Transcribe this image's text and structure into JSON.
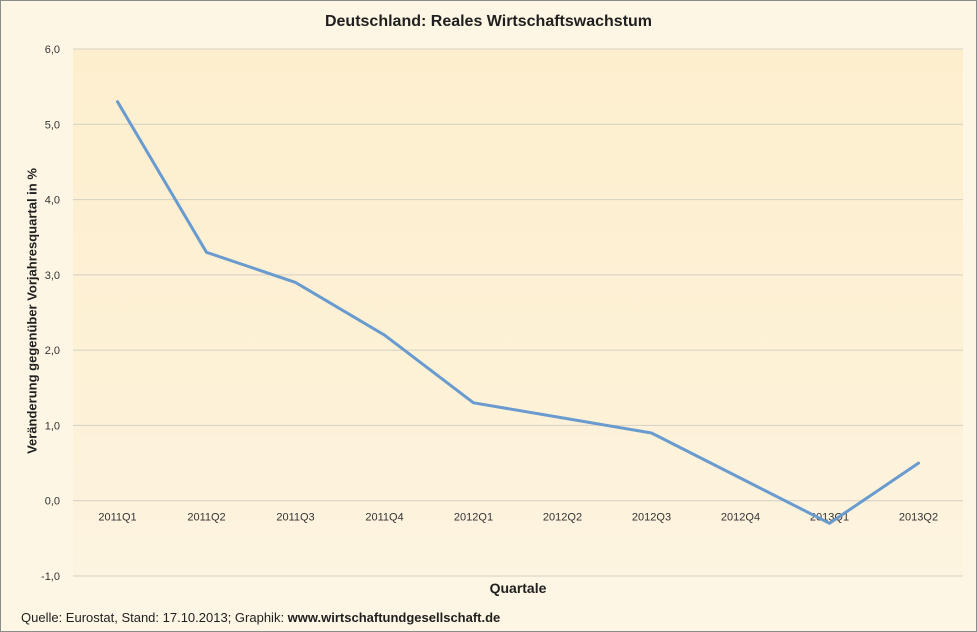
{
  "chart_data": {
    "type": "line",
    "title": "Deutschland: Reales Wirtschaftswachstum",
    "xlabel": "Quartale",
    "ylabel": "Veränderung gegenüber Vorjahresquartal in %",
    "categories": [
      "2011Q1",
      "2011Q2",
      "2011Q3",
      "2011Q4",
      "2012Q1",
      "2012Q2",
      "2012Q3",
      "2012Q4",
      "2013Q1",
      "2013Q2"
    ],
    "values": [
      5.3,
      3.3,
      2.9,
      2.2,
      1.3,
      1.1,
      0.9,
      0.3,
      -0.3,
      0.5
    ],
    "ylim": [
      -1,
      6
    ],
    "yticks": [
      "-1,0",
      "0,0",
      "1,0",
      "2,0",
      "3,0",
      "4,0",
      "5,0",
      "6,0"
    ],
    "grid": true,
    "line_color": "#6a9bcf"
  },
  "footer": {
    "source_text": "Quelle: Eurostat, Stand: 17.10.2013;  Graphik: ",
    "source_site": "www.wirtschaftundgesellschaft.de"
  }
}
